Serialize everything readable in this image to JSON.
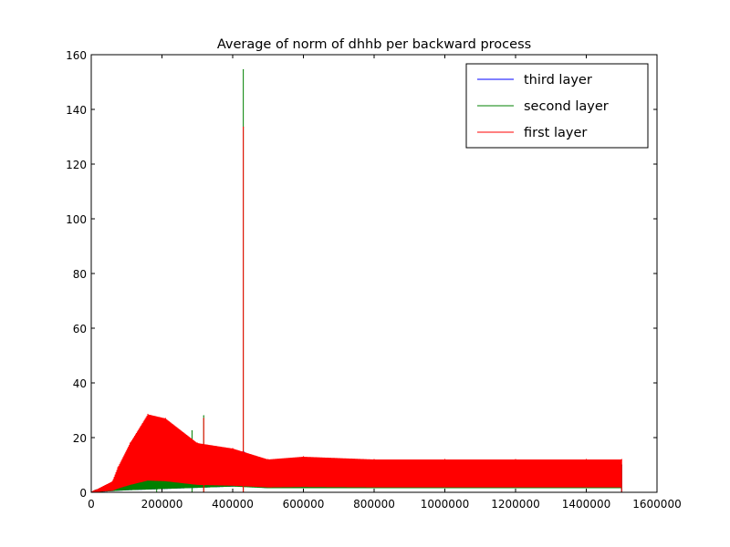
{
  "chart_data": {
    "type": "line",
    "title": "Average of norm of dhhb per backward process",
    "xlabel": "",
    "ylabel": "",
    "xlim": [
      0,
      1600000
    ],
    "ylim": [
      0,
      160
    ],
    "xticks": [
      0,
      200000,
      400000,
      600000,
      800000,
      1000000,
      1200000,
      1400000,
      1600000
    ],
    "xtick_labels": [
      "0",
      "200000",
      "400000",
      "600000",
      "800000",
      "1000000",
      "1200000",
      "1400000",
      "1600000"
    ],
    "yticks": [
      0,
      20,
      40,
      60,
      80,
      100,
      120,
      140,
      160
    ],
    "ytick_labels": [
      "0",
      "20",
      "40",
      "60",
      "80",
      "100",
      "120",
      "140",
      "160"
    ],
    "grid": false,
    "legend_position": "top-right",
    "series": [
      {
        "name": "third layer",
        "color": "#0000ff",
        "x": [
          0,
          100000,
          200000,
          300000,
          400000,
          430000,
          500000,
          800000,
          1200000,
          1500000
        ],
        "y": [
          0,
          5,
          8,
          11,
          14,
          15,
          10,
          10,
          10,
          10
        ]
      },
      {
        "name": "second layer",
        "color": "#008000",
        "x": [
          0,
          100000,
          185000,
          200000,
          285000,
          300000,
          318000,
          400000,
          430000,
          500000,
          800000,
          1200000,
          1500000
        ],
        "y": [
          0,
          5,
          20.5,
          8,
          22.5,
          11,
          28,
          14,
          154.5,
          10,
          10,
          10,
          10
        ]
      },
      {
        "name": "first layer",
        "color": "#ff0000",
        "x": [
          0,
          60000,
          75000,
          110000,
          160000,
          210000,
          300000,
          318000,
          400000,
          430000,
          500000,
          600000,
          800000,
          1000000,
          1200000,
          1400000,
          1500000
        ],
        "y": [
          0,
          4,
          9,
          18,
          28.5,
          27,
          18,
          27,
          16,
          133.5,
          12,
          13,
          12,
          12,
          12,
          12,
          12
        ]
      }
    ]
  }
}
